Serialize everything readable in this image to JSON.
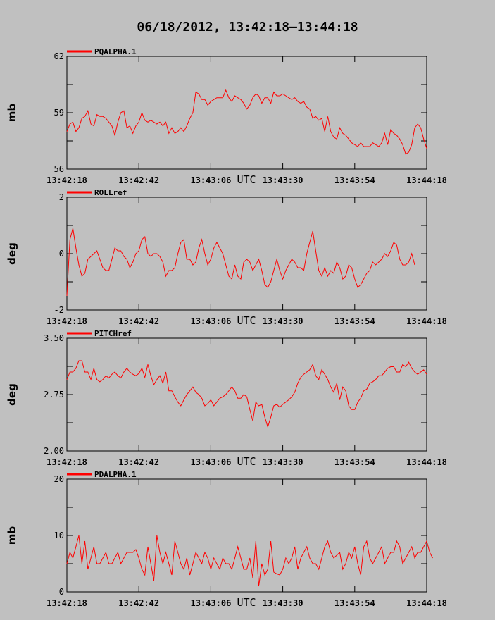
{
  "title": "06/18/2012, 13:42:18–13:44:18",
  "xlabel": "UTC",
  "colors": {
    "background": "#c0c0c0",
    "plot_background": "#c0c0c0",
    "series": "#ff0000",
    "axes": "#000000"
  },
  "chart_data": [
    {
      "type": "line",
      "series_name": "PQALPHA.1",
      "ylabel": "mb",
      "ylim": [
        56,
        62
      ],
      "yticks": [
        "56",
        "59",
        "62"
      ],
      "xticks": [
        "13:42:18",
        "13:42:42",
        "13:43:06",
        "13:43:30",
        "13:43:54",
        "13:44:18"
      ],
      "xlim_seconds": [
        0,
        120
      ],
      "x_step_seconds": 1,
      "values": [
        58.0,
        58.4,
        58.5,
        58.0,
        58.2,
        58.7,
        58.8,
        59.1,
        58.4,
        58.3,
        58.9,
        58.8,
        58.8,
        58.7,
        58.5,
        58.3,
        57.8,
        58.5,
        59.0,
        59.1,
        58.2,
        58.3,
        57.9,
        58.3,
        58.5,
        59.0,
        58.6,
        58.5,
        58.6,
        58.5,
        58.4,
        58.5,
        58.3,
        58.5,
        57.9,
        58.2,
        57.9,
        58.0,
        58.2,
        58.0,
        58.3,
        58.7,
        59.0,
        60.1,
        60.0,
        59.7,
        59.7,
        59.4,
        59.6,
        59.7,
        59.8,
        59.8,
        59.8,
        60.2,
        59.8,
        59.6,
        59.9,
        59.8,
        59.7,
        59.5,
        59.2,
        59.4,
        59.8,
        60.0,
        59.9,
        59.5,
        59.8,
        59.8,
        59.5,
        60.1,
        59.9,
        59.9,
        60.0,
        59.9,
        59.8,
        59.7,
        59.8,
        59.6,
        59.5,
        59.6,
        59.3,
        59.2,
        58.7,
        58.8,
        58.6,
        58.7,
        58.0,
        58.8,
        58.0,
        57.7,
        57.6,
        58.2,
        57.9,
        57.8,
        57.6,
        57.4,
        57.3,
        57.2,
        57.4,
        57.2,
        57.2,
        57.2,
        57.4,
        57.3,
        57.2,
        57.4,
        57.9,
        57.3,
        58.1,
        57.9,
        57.8,
        57.6,
        57.3,
        56.8,
        56.9,
        57.3,
        58.2,
        58.4,
        58.2,
        57.6,
        57.1
      ]
    },
    {
      "type": "line",
      "series_name": "ROLLref",
      "ylabel": "deg",
      "ylim": [
        -2,
        2
      ],
      "yticks": [
        "-2",
        "0",
        "2"
      ],
      "xticks": [
        "13:42:18",
        "13:42:42",
        "13:43:06",
        "13:43:30",
        "13:43:54",
        "13:44:18"
      ],
      "xlim_seconds": [
        0,
        120
      ],
      "x_step_seconds": 1,
      "values": [
        -1.5,
        0.5,
        0.9,
        0.2,
        -0.4,
        -0.8,
        -0.7,
        -0.2,
        -0.1,
        0.0,
        0.1,
        -0.2,
        -0.5,
        -0.6,
        -0.6,
        -0.2,
        0.2,
        0.1,
        0.1,
        -0.1,
        -0.2,
        -0.5,
        -0.3,
        0.0,
        0.1,
        0.5,
        0.6,
        0.0,
        -0.1,
        0.0,
        0.0,
        -0.1,
        -0.3,
        -0.8,
        -0.6,
        -0.6,
        -0.5,
        0.0,
        0.4,
        0.5,
        -0.2,
        -0.2,
        -0.4,
        -0.3,
        0.2,
        0.5,
        0.0,
        -0.4,
        -0.2,
        0.2,
        0.4,
        0.2,
        0.0,
        -0.4,
        -0.8,
        -0.9,
        -0.4,
        -0.8,
        -0.9,
        -0.3,
        -0.2,
        -0.3,
        -0.6,
        -0.4,
        -0.2,
        -0.6,
        -1.1,
        -1.2,
        -1.0,
        -0.6,
        -0.2,
        -0.6,
        -0.9,
        -0.6,
        -0.4,
        -0.2,
        -0.3,
        -0.5,
        -0.5,
        -0.6,
        0.0,
        0.4,
        0.8,
        0.1,
        -0.6,
        -0.8,
        -0.5,
        -0.8,
        -0.6,
        -0.7,
        -0.3,
        -0.5,
        -0.9,
        -0.8,
        -0.4,
        -0.5,
        -0.9,
        -1.2,
        -1.1,
        -0.9,
        -0.7,
        -0.6,
        -0.3,
        -0.4,
        -0.3,
        -0.2,
        0.0,
        -0.1,
        0.1,
        0.4,
        0.3,
        -0.2,
        -0.4,
        -0.4,
        -0.3,
        0.0,
        -0.4
      ]
    },
    {
      "type": "line",
      "series_name": "PITCHref",
      "ylabel": "deg",
      "ylim": [
        2.0,
        3.5
      ],
      "yticks": [
        "2.00",
        "2.75",
        "3.50"
      ],
      "xticks": [
        "13:42:18",
        "13:42:42",
        "13:43:06",
        "13:43:30",
        "13:43:54",
        "13:44:18"
      ],
      "xlim_seconds": [
        0,
        120
      ],
      "x_step_seconds": 1,
      "values": [
        2.95,
        3.05,
        3.05,
        3.1,
        3.2,
        3.2,
        3.05,
        3.05,
        2.95,
        3.1,
        2.95,
        2.92,
        2.95,
        3.0,
        2.97,
        3.02,
        3.05,
        3.0,
        2.97,
        3.05,
        3.1,
        3.05,
        3.02,
        3.0,
        3.03,
        3.1,
        2.98,
        3.15,
        3.0,
        2.88,
        2.95,
        3.0,
        2.9,
        3.05,
        2.8,
        2.8,
        2.72,
        2.65,
        2.6,
        2.68,
        2.75,
        2.8,
        2.85,
        2.78,
        2.75,
        2.7,
        2.6,
        2.63,
        2.68,
        2.6,
        2.65,
        2.7,
        2.72,
        2.75,
        2.8,
        2.85,
        2.8,
        2.7,
        2.7,
        2.75,
        2.72,
        2.55,
        2.4,
        2.65,
        2.6,
        2.62,
        2.45,
        2.32,
        2.45,
        2.6,
        2.62,
        2.58,
        2.62,
        2.65,
        2.68,
        2.72,
        2.78,
        2.9,
        2.98,
        3.02,
        3.05,
        3.08,
        3.15,
        3.0,
        2.95,
        3.08,
        3.02,
        2.95,
        2.85,
        2.78,
        2.9,
        2.68,
        2.85,
        2.8,
        2.6,
        2.55,
        2.55,
        2.65,
        2.7,
        2.8,
        2.82,
        2.9,
        2.92,
        2.95,
        3.0,
        3.0,
        3.05,
        3.1,
        3.12,
        3.12,
        3.05,
        3.05,
        3.15,
        3.12,
        3.18,
        3.1,
        3.05,
        3.02,
        3.05,
        3.08,
        3.02
      ]
    },
    {
      "type": "line",
      "series_name": "PDALPHA.1",
      "ylabel": "mb",
      "ylim": [
        0,
        20
      ],
      "yticks": [
        "0",
        "10",
        "20"
      ],
      "xticks": [
        "13:42:18",
        "13:42:42",
        "13:43:06",
        "13:43:30",
        "13:43:54",
        "13:44:18"
      ],
      "xlim_seconds": [
        0,
        120
      ],
      "x_step_seconds": 1,
      "values": [
        5,
        7,
        6,
        8,
        10,
        5,
        9,
        4,
        6,
        8,
        5,
        5,
        6,
        7,
        5,
        5,
        6,
        7,
        5,
        6,
        7,
        7,
        7,
        7.5,
        6,
        4,
        3,
        8,
        5,
        2,
        10,
        7,
        5,
        7,
        5,
        3,
        9,
        7,
        5,
        4,
        6,
        3,
        5,
        7,
        6,
        5,
        7,
        6,
        4,
        6,
        5,
        4,
        6,
        5,
        5,
        4,
        6,
        8,
        6,
        4,
        4,
        6,
        2.5,
        9,
        1,
        5,
        3,
        4,
        9,
        3.5,
        3.2,
        3,
        4,
        6,
        5,
        6,
        8,
        4,
        6,
        7,
        8,
        6,
        5,
        5,
        4,
        6,
        8,
        9,
        7,
        6,
        6.5,
        7,
        4,
        5,
        7,
        6,
        8,
        5,
        3,
        8,
        9,
        6,
        5,
        6,
        7,
        8,
        5,
        6,
        7,
        7,
        9,
        8,
        5,
        6,
        7,
        8,
        6,
        7,
        7,
        8,
        9,
        7,
        6
      ]
    }
  ]
}
